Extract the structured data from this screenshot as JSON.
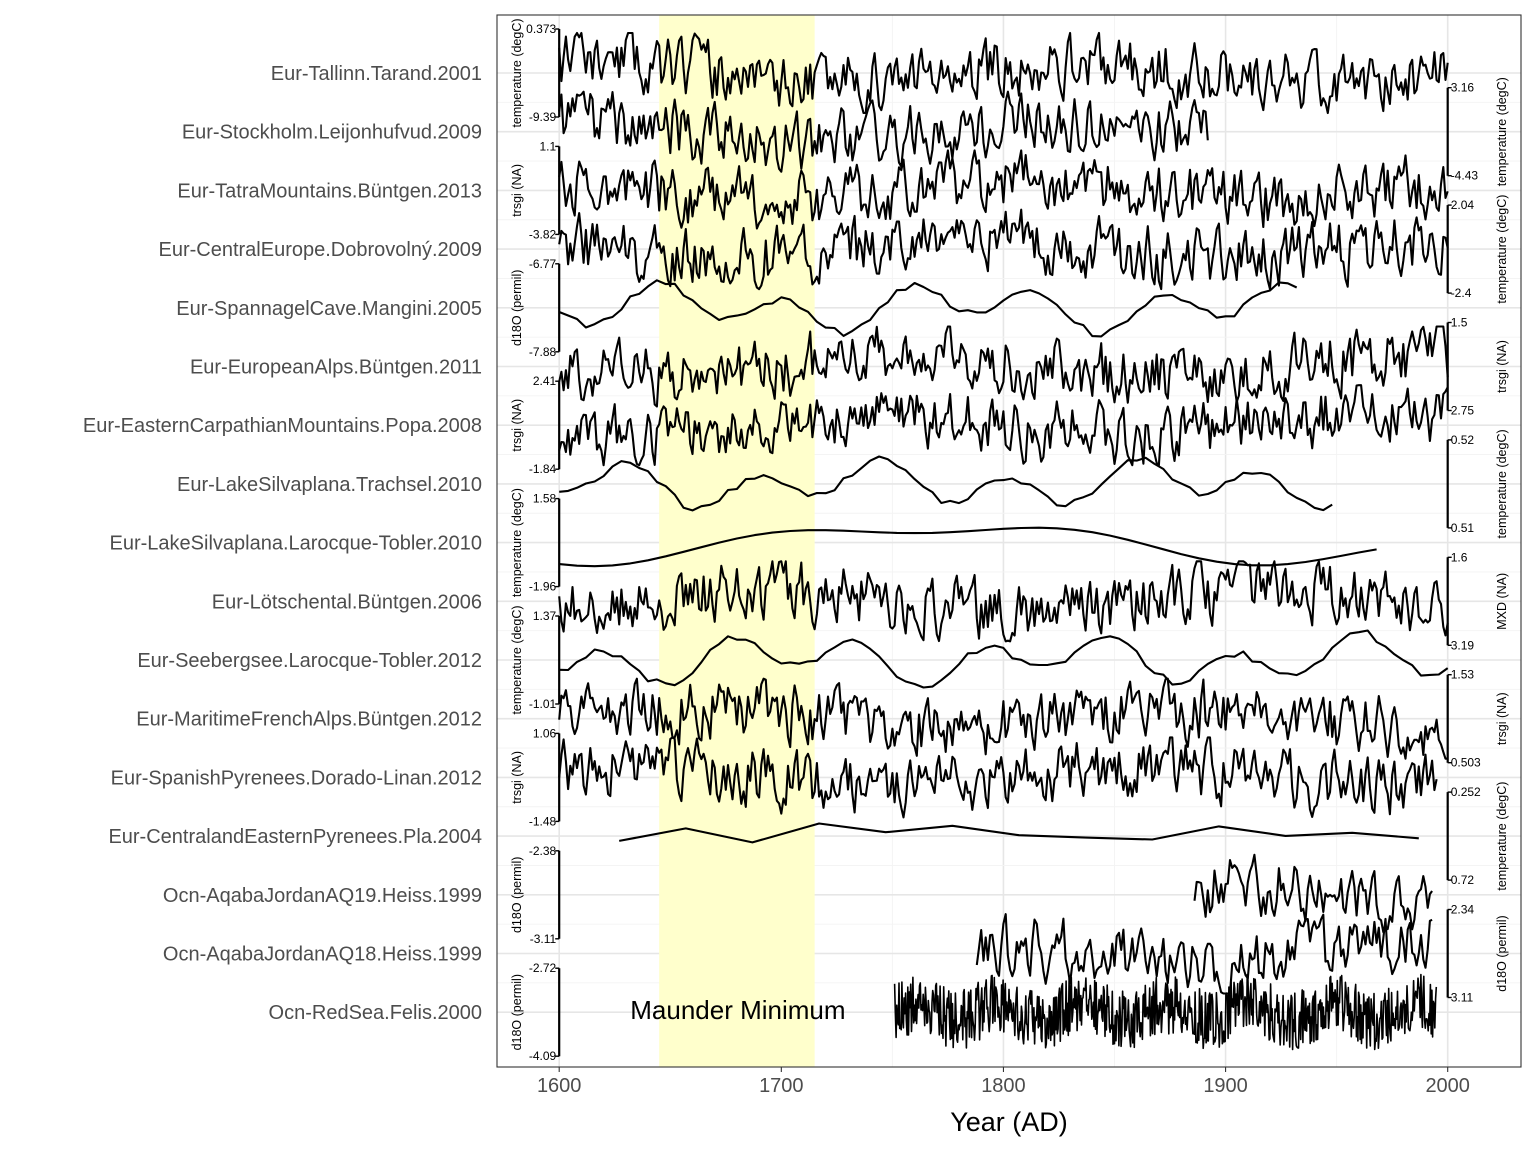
{
  "chart_data": {
    "type": "line",
    "subtype": "stacked-timeseries",
    "title": "",
    "xlabel": "Year (AD)",
    "ylabel": "",
    "xlim": [
      1572,
      2033
    ],
    "x_ticks": [
      1600,
      1700,
      1800,
      1900,
      2000
    ],
    "grid": true,
    "legend": "none",
    "annotation": {
      "label": "Maunder Minimum",
      "x_range": [
        1645,
        1715
      ],
      "color": "#FFFFCC"
    },
    "series": [
      {
        "name": "Eur-Tallinn.Tarand.2001",
        "unit_label": "temperature (degC)",
        "axis_side": "left",
        "axis_ticks": [
          "0.373",
          "-9.39"
        ],
        "x_range": [
          1600,
          2000
        ],
        "style": "wiggly",
        "seed": 11
      },
      {
        "name": "Eur-Stockholm.Leijonhufvud.2009",
        "unit_label": "temperature (degC)",
        "axis_side": "right",
        "axis_ticks": [
          "3.16",
          "-4.43"
        ],
        "x_range": [
          1600,
          1892
        ],
        "style": "wiggly",
        "seed": 12
      },
      {
        "name": "Eur-TatraMountains.Büntgen.2013",
        "unit_label": "trsgi (NA)",
        "axis_side": "left",
        "axis_ticks": [
          "1.1",
          "-3.82"
        ],
        "x_range": [
          1600,
          2000
        ],
        "style": "wiggly",
        "seed": 13
      },
      {
        "name": "Eur-CentralEurope.Dobrovolný.2009",
        "unit_label": "temperature (degC)",
        "axis_side": "right",
        "axis_ticks": [
          "2.04",
          "-2.4"
        ],
        "x_range": [
          1600,
          2000
        ],
        "style": "wiggly",
        "seed": 14
      },
      {
        "name": "Eur-SpannagelCave.Mangini.2005",
        "unit_label": "d18O (permil)",
        "axis_side": "left",
        "axis_ticks": [
          "-6.77",
          "-7.88"
        ],
        "x_range": [
          1600,
          1935
        ],
        "style": "smooth",
        "seed": 15
      },
      {
        "name": "Eur-EuropeanAlps.Büntgen.2011",
        "unit_label": "trsgi (NA)",
        "axis_side": "right",
        "axis_ticks": [
          "1.5",
          "2.75"
        ],
        "x_range": [
          1600,
          2000
        ],
        "style": "wiggly",
        "seed": 16
      },
      {
        "name": "Eur-EasternCarpathianMountains.Popa.2008",
        "unit_label": "trsgi (NA)",
        "axis_side": "left",
        "axis_ticks": [
          "2.41",
          "-1.84"
        ],
        "x_range": [
          1600,
          2000
        ],
        "style": "wiggly",
        "seed": 17
      },
      {
        "name": "Eur-LakeSilvaplana.Trachsel.2010",
        "unit_label": "temperature (degC)",
        "axis_side": "right",
        "axis_ticks": [
          "0.52",
          "0.51"
        ],
        "x_range": [
          1600,
          1950
        ],
        "style": "smooth",
        "seed": 18
      },
      {
        "name": "Eur-LakeSilvaplana.Larocque-Tobler.2010",
        "unit_label": "temperature (degC)",
        "axis_side": "left",
        "axis_ticks": [
          "1.58",
          "-1.96"
        ],
        "x_range": [
          1600,
          1975
        ],
        "style": "verysmooth",
        "seed": 19
      },
      {
        "name": "Eur-Lötschental.Büntgen.2006",
        "unit_label": "MXD (NA)",
        "axis_side": "right",
        "axis_ticks": [
          "1.6",
          "3.19"
        ],
        "x_range": [
          1600,
          2000
        ],
        "style": "wiggly",
        "seed": 20
      },
      {
        "name": "Eur-Seebergsee.Larocque-Tobler.2012",
        "unit_label": "temperature (degC)",
        "axis_side": "left",
        "axis_ticks": [
          "1.37",
          "-1.01"
        ],
        "x_range": [
          1600,
          2000
        ],
        "style": "smooth",
        "seed": 21
      },
      {
        "name": "Eur-MaritimeFrenchAlps.Büntgen.2012",
        "unit_label": "trsgi (NA)",
        "axis_side": "right",
        "axis_ticks": [
          "1.53",
          "0.503"
        ],
        "x_range": [
          1600,
          2000
        ],
        "style": "wiggly",
        "seed": 22
      },
      {
        "name": "Eur-SpanishPyrenees.Dorado-Linan.2012",
        "unit_label": "trsgi (NA)",
        "axis_side": "left",
        "axis_ticks": [
          "1.06",
          "-1.48"
        ],
        "x_range": [
          1600,
          1995
        ],
        "style": "wiggly",
        "seed": 23
      },
      {
        "name": "Eur-CentralandEasternPyrenees.Pla.2004",
        "unit_label": "temperature (degC)",
        "axis_side": "right",
        "axis_ticks": [
          "0.252",
          "0.72"
        ],
        "x_range": [
          1627,
          1995
        ],
        "style": "sparse",
        "seed": 24
      },
      {
        "name": "Ocn-AqabaJordanAQ19.Heiss.1999",
        "unit_label": "d18O (permil)",
        "axis_side": "left",
        "axis_ticks": [
          "-2.38",
          "-3.11"
        ],
        "x_range": [
          1886,
          1993
        ],
        "style": "wiggly",
        "seed": 25
      },
      {
        "name": "Ocn-AqabaJordanAQ18.Heiss.1999",
        "unit_label": "d18O (permil)",
        "axis_side": "right",
        "axis_ticks": [
          "2.34",
          "3.11"
        ],
        "x_range": [
          1788,
          1993
        ],
        "style": "wiggly",
        "seed": 26
      },
      {
        "name": "Ocn-RedSea.Felis.2000",
        "unit_label": "d18O (permil)",
        "axis_side": "left",
        "axis_ticks": [
          "-2.72",
          "-4.09"
        ],
        "x_range": [
          1751,
          1995
        ],
        "style": "dense",
        "seed": 27
      }
    ]
  }
}
